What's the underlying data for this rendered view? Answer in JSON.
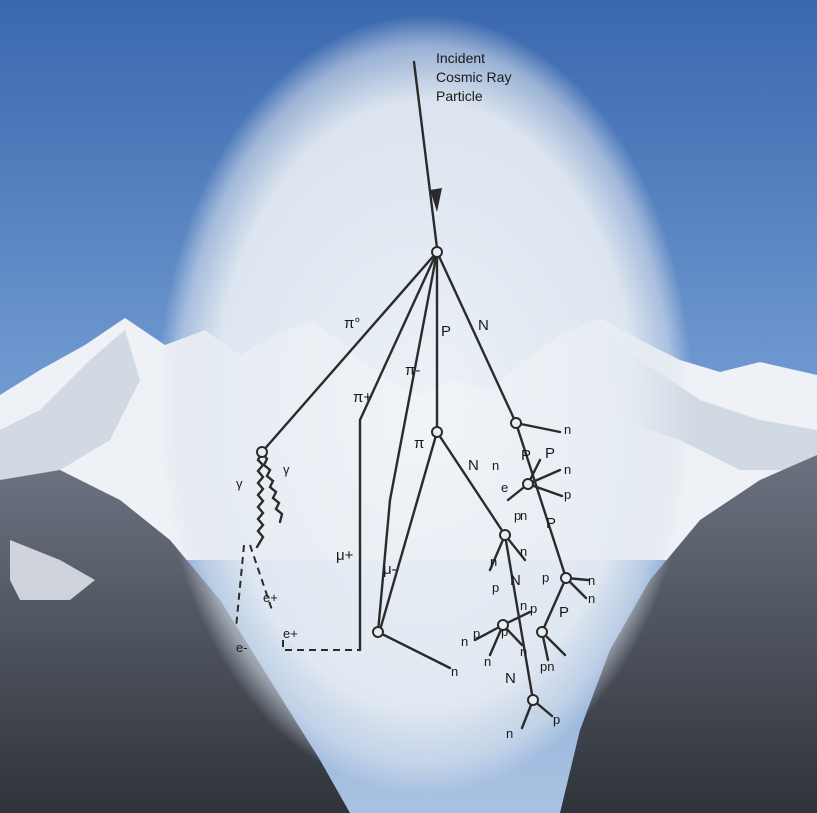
{
  "title": [
    "Incident",
    "Cosmic Ray",
    "Particle"
  ],
  "labels": {
    "pi0": "π°",
    "pi_minus": "π-",
    "pi_plus": "π+",
    "p": "P",
    "N": "N",
    "pi": "π",
    "gamma1": "γ",
    "gamma2": "γ",
    "mu_plus": "μ+",
    "mu_minus": "μ-",
    "e_plus": "e+",
    "e_minus": "e-",
    "e_plus2": "e+",
    "n1": "n",
    "p1": "P",
    "p2": "P",
    "n2": "n",
    "n3": "n",
    "e3": "e",
    "p3": "p",
    "p4": "p",
    "N2": "N",
    "n4": "n",
    "n5": "n",
    "p5": "P",
    "n6": "n",
    "p6": "p",
    "N3": "N",
    "p7": "p",
    "n7": "n",
    "p8": "P",
    "n8": "n",
    "n9": "n",
    "p9": "p",
    "p10": "p",
    "n10": "n",
    "n11": "n",
    "p11": "p",
    "n12": "n",
    "N4": "N",
    "pn": "pn",
    "n13": "n",
    "p12": "p",
    "n14": "n"
  },
  "colors": {
    "sky_top": "#3f6fb3",
    "sky_bottom": "#9dbbe0",
    "snow": "#f4f6f9",
    "rock": "#4a4f57",
    "glow": "#e8eef5"
  }
}
